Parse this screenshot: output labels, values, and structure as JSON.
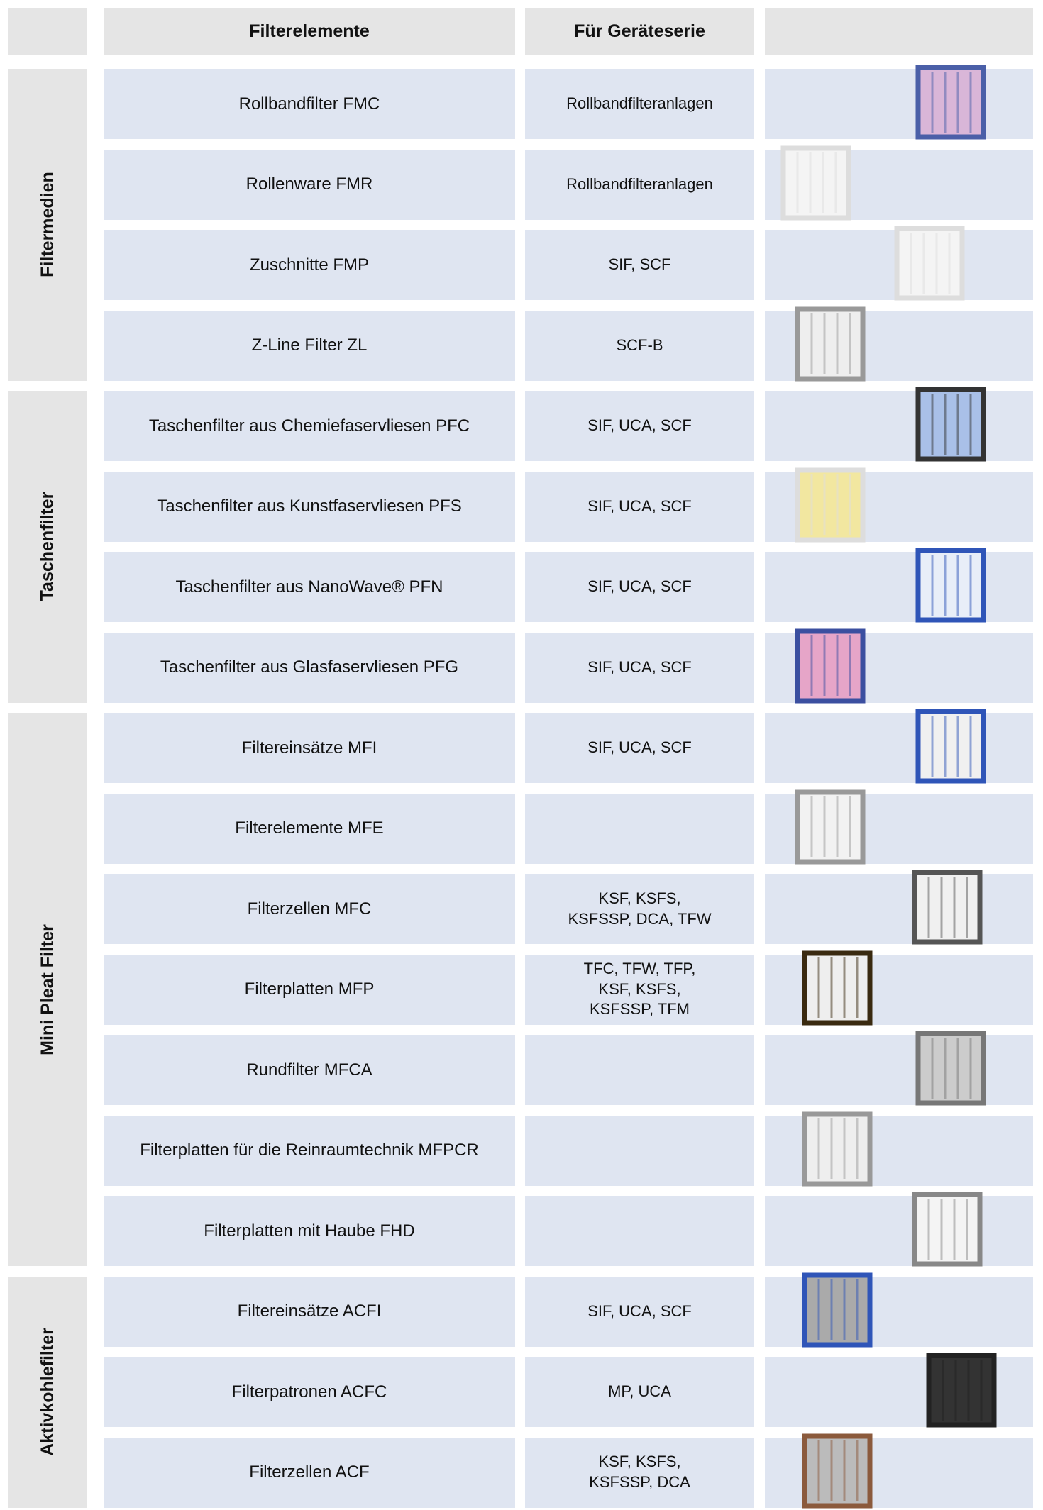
{
  "header": {
    "elements": "Filterelemente",
    "series": "Für Geräteserie"
  },
  "groups": [
    {
      "label": "Filtermedien",
      "rows": [
        {
          "element": "Rollbandfilter FMC",
          "series": "Rollbandfilteranlagen"
        },
        {
          "element": "Rollenware FMR",
          "series": "Rollbandfilteranlagen"
        },
        {
          "element": "Zuschnitte FMP",
          "series": "SIF, SCF"
        },
        {
          "element": "Z-Line Filter ZL",
          "series": "SCF-B"
        }
      ]
    },
    {
      "label": "Taschenfilter",
      "rows": [
        {
          "element": "Taschenfilter aus Chemiefaservliesen PFC",
          "series": "SIF, UCA, SCF"
        },
        {
          "element": "Taschenfilter aus Kunstfaservliesen PFS",
          "series": "SIF, UCA, SCF"
        },
        {
          "element": "Taschenfilter aus NanoWave® PFN",
          "series": "SIF, UCA, SCF"
        },
        {
          "element": "Taschenfilter aus Glasfaservliesen PFG",
          "series": "SIF, UCA, SCF"
        }
      ]
    },
    {
      "label": "Mini Pleat Filter",
      "rows": [
        {
          "element": "Filtereinsätze MFI",
          "series": "SIF, UCA, SCF"
        },
        {
          "element": "Filterelemente MFE"
        },
        {
          "element": "Filterzellen MFC",
          "series": "KSF, KSFS, KSFSSP, DCA, TFW"
        },
        {
          "element": "Filterplatten MFP",
          "series": "TFC, TFW, TFP, KSF, KSFS, KSFSSP, TFM"
        },
        {
          "element": "Rundfilter MFCA"
        },
        {
          "element": "Filterplatten für die Reinraumtechnik MFPCR"
        },
        {
          "element": "Filterplatten mit Haube FHD"
        }
      ]
    },
    {
      "label": "Aktivkohlefilter",
      "rows": [
        {
          "element": "Filtereinsätze ACFI",
          "series": "SIF, UCA, SCF"
        },
        {
          "element": "Filterpatronen ACFC",
          "series": "MP, UCA"
        },
        {
          "element": "Filterzellen ACF",
          "series": "KSF, KSFS, KSFSSP, DCA"
        }
      ]
    }
  ]
}
